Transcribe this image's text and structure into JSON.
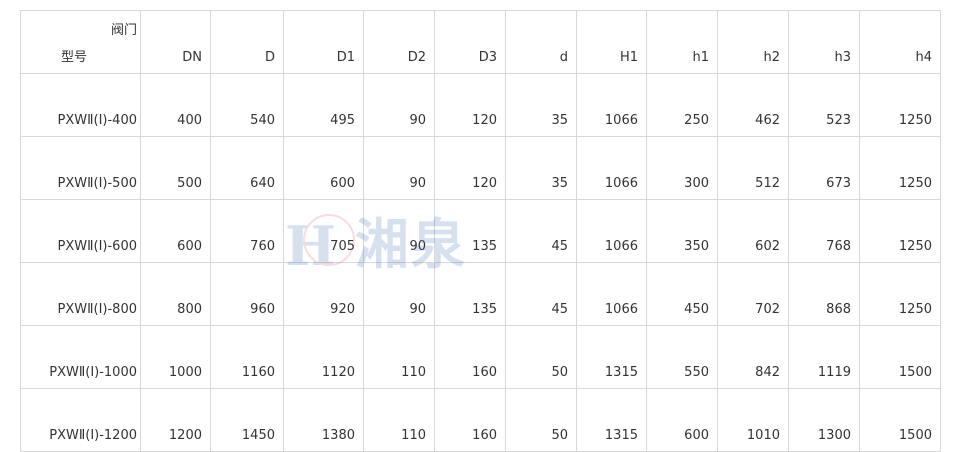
{
  "header": {
    "corner_top": "阀门",
    "corner_bottom": "型号",
    "columns": [
      "DN",
      "D",
      "D1",
      "D2",
      "D3",
      "d",
      "H1",
      "h1",
      "h2",
      "h3",
      "h4"
    ]
  },
  "rows": [
    {
      "model": "PXWⅡ(Ⅰ)-400",
      "values": [
        "400",
        "540",
        "495",
        "90",
        "120",
        "35",
        "1066",
        "250",
        "462",
        "523",
        "1250"
      ]
    },
    {
      "model": "PXWⅡ(Ⅰ)-500",
      "values": [
        "500",
        "640",
        "600",
        "90",
        "120",
        "35",
        "1066",
        "300",
        "512",
        "673",
        "1250"
      ]
    },
    {
      "model": "PXWⅡ(Ⅰ)-600",
      "values": [
        "600",
        "760",
        "705",
        "90",
        "135",
        "45",
        "1066",
        "350",
        "602",
        "768",
        "1250"
      ]
    },
    {
      "model": "PXWⅡ(Ⅰ)-800",
      "values": [
        "800",
        "960",
        "920",
        "90",
        "135",
        "45",
        "1066",
        "450",
        "702",
        "868",
        "1250"
      ]
    },
    {
      "model": "PXWⅡ(Ⅰ)-1000",
      "values": [
        "1000",
        "1160",
        "1120",
        "110",
        "160",
        "50",
        "1315",
        "550",
        "842",
        "1119",
        "1500"
      ]
    },
    {
      "model": "PXWⅡ(Ⅰ)-1200",
      "values": [
        "1200",
        "1450",
        "1380",
        "110",
        "160",
        "50",
        "1315",
        "600",
        "1010",
        "1300",
        "1500"
      ]
    }
  ],
  "watermark": {
    "text": "湘泉"
  }
}
